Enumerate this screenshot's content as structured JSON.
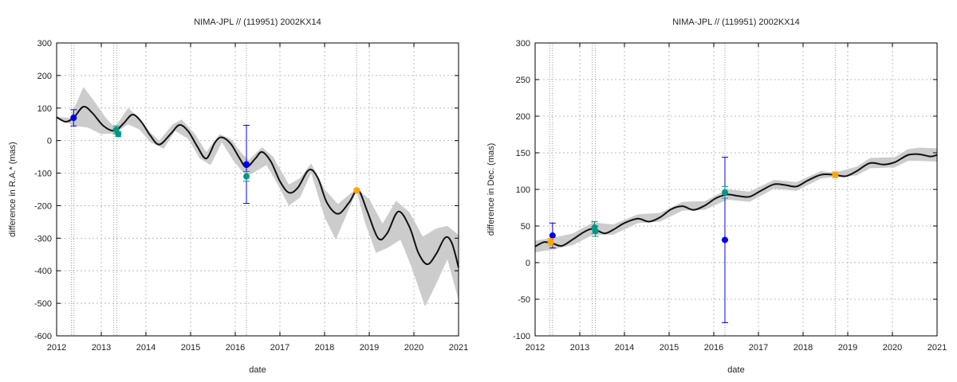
{
  "chart_data": [
    {
      "type": "line",
      "title": "NIMA-JPL // (119951) 2002KX14",
      "xlabel": "date",
      "ylabel": "difference in R.A.* (mas)",
      "xlim": [
        2012,
        2021
      ],
      "ylim": [
        -600,
        300
      ],
      "xticks": [
        2012,
        2013,
        2014,
        2015,
        2016,
        2017,
        2018,
        2019,
        2020,
        2021
      ],
      "yticks": [
        -600,
        -500,
        -400,
        -300,
        -200,
        -100,
        0,
        100,
        200,
        300
      ],
      "grid": true,
      "observation_dates": [
        2012.33,
        2012.39,
        2013.28,
        2013.35,
        2016.25,
        2018.72
      ],
      "curve": [
        [
          2012.0,
          72
        ],
        [
          2012.2,
          58
        ],
        [
          2012.38,
          70
        ],
        [
          2012.6,
          104
        ],
        [
          2012.8,
          85
        ],
        [
          2013.05,
          45
        ],
        [
          2013.3,
          30
        ],
        [
          2013.5,
          53
        ],
        [
          2013.7,
          80
        ],
        [
          2013.9,
          57
        ],
        [
          2014.1,
          15
        ],
        [
          2014.3,
          -12
        ],
        [
          2014.55,
          20
        ],
        [
          2014.75,
          48
        ],
        [
          2014.95,
          28
        ],
        [
          2015.15,
          -18
        ],
        [
          2015.35,
          -55
        ],
        [
          2015.55,
          -5
        ],
        [
          2015.7,
          10
        ],
        [
          2015.9,
          -10
        ],
        [
          2016.1,
          -55
        ],
        [
          2016.25,
          -82
        ],
        [
          2016.45,
          -55
        ],
        [
          2016.6,
          -35
        ],
        [
          2016.8,
          -65
        ],
        [
          2017.0,
          -125
        ],
        [
          2017.2,
          -160
        ],
        [
          2017.4,
          -145
        ],
        [
          2017.65,
          -90
        ],
        [
          2017.85,
          -115
        ],
        [
          2018.05,
          -190
        ],
        [
          2018.3,
          -225
        ],
        [
          2018.55,
          -190
        ],
        [
          2018.75,
          -152
        ],
        [
          2018.95,
          -215
        ],
        [
          2019.2,
          -300
        ],
        [
          2019.4,
          -285
        ],
        [
          2019.65,
          -218
        ],
        [
          2019.9,
          -265
        ],
        [
          2020.1,
          -345
        ],
        [
          2020.3,
          -380
        ],
        [
          2020.5,
          -348
        ],
        [
          2020.7,
          -298
        ],
        [
          2020.85,
          -315
        ],
        [
          2021.0,
          -390
        ]
      ],
      "band_upper": [
        [
          2012.0,
          72
        ],
        [
          2012.3,
          70
        ],
        [
          2012.6,
          165
        ],
        [
          2012.85,
          120
        ],
        [
          2013.1,
          70
        ],
        [
          2013.3,
          40
        ],
        [
          2013.6,
          100
        ],
        [
          2013.85,
          70
        ],
        [
          2014.1,
          25
        ],
        [
          2014.3,
          0
        ],
        [
          2014.6,
          50
        ],
        [
          2014.8,
          65
        ],
        [
          2015.1,
          20
        ],
        [
          2015.35,
          -35
        ],
        [
          2015.65,
          20
        ],
        [
          2015.9,
          5
        ],
        [
          2016.15,
          -40
        ],
        [
          2016.3,
          -60
        ],
        [
          2016.6,
          -20
        ],
        [
          2016.85,
          -50
        ],
        [
          2017.2,
          -135
        ],
        [
          2017.45,
          -115
        ],
        [
          2017.7,
          -70
        ],
        [
          2018.0,
          -150
        ],
        [
          2018.3,
          -195
        ],
        [
          2018.6,
          -160
        ],
        [
          2018.72,
          -148
        ],
        [
          2019.0,
          -180
        ],
        [
          2019.3,
          -255
        ],
        [
          2019.6,
          -185
        ],
        [
          2019.9,
          -220
        ],
        [
          2020.2,
          -295
        ],
        [
          2020.5,
          -270
        ],
        [
          2020.75,
          -262
        ],
        [
          2021.0,
          -290
        ]
      ],
      "band_lower": [
        [
          2021.0,
          -490
        ],
        [
          2020.75,
          -365
        ],
        [
          2020.5,
          -440
        ],
        [
          2020.25,
          -510
        ],
        [
          2019.95,
          -390
        ],
        [
          2019.7,
          -305
        ],
        [
          2019.4,
          -330
        ],
        [
          2019.15,
          -345
        ],
        [
          2018.9,
          -250
        ],
        [
          2018.72,
          -155
        ],
        [
          2018.5,
          -225
        ],
        [
          2018.25,
          -305
        ],
        [
          2018.0,
          -235
        ],
        [
          2017.7,
          -100
        ],
        [
          2017.45,
          -175
        ],
        [
          2017.2,
          -200
        ],
        [
          2016.95,
          -135
        ],
        [
          2016.7,
          -75
        ],
        [
          2016.45,
          -95
        ],
        [
          2016.25,
          -110
        ],
        [
          2015.95,
          -60
        ],
        [
          2015.7,
          -5
        ],
        [
          2015.45,
          -75
        ],
        [
          2015.2,
          -55
        ],
        [
          2014.95,
          5
        ],
        [
          2014.65,
          30
        ],
        [
          2014.4,
          -25
        ],
        [
          2014.1,
          -5
        ],
        [
          2013.85,
          35
        ],
        [
          2013.6,
          50
        ],
        [
          2013.3,
          22
        ],
        [
          2013.0,
          20
        ],
        [
          2012.7,
          40
        ],
        [
          2012.4,
          45
        ],
        [
          2012.0,
          72
        ]
      ],
      "points": [
        {
          "x": 2012.38,
          "y": 70,
          "err": 25,
          "color": "#0000ee"
        },
        {
          "x": 2013.33,
          "y": 33,
          "err": 12,
          "color": "#009688"
        },
        {
          "x": 2013.38,
          "y": 20,
          "err": 8,
          "color": "#009688"
        },
        {
          "x": 2016.25,
          "y": -73,
          "err": 120,
          "color": "#0000ee"
        },
        {
          "x": 2016.25,
          "y": -110,
          "err": 15,
          "color": "#009688"
        },
        {
          "x": 2018.72,
          "y": -153,
          "err": 6,
          "color": "#ffa500"
        }
      ]
    },
    {
      "type": "line",
      "title": "NIMA-JPL // (119951) 2002KX14",
      "xlabel": "date",
      "ylabel": "difference in Dec. (mas)",
      "xlim": [
        2012,
        2021
      ],
      "ylim": [
        -100,
        300
      ],
      "xticks": [
        2012,
        2013,
        2014,
        2015,
        2016,
        2017,
        2018,
        2019,
        2020,
        2021
      ],
      "yticks": [
        -100,
        -50,
        0,
        50,
        100,
        150,
        200,
        250,
        300
      ],
      "grid": true,
      "observation_dates": [
        2012.33,
        2012.39,
        2013.28,
        2013.35,
        2016.25,
        2018.72
      ],
      "curve": [
        [
          2012.0,
          22
        ],
        [
          2012.2,
          28
        ],
        [
          2012.4,
          26
        ],
        [
          2012.6,
          23
        ],
        [
          2012.85,
          32
        ],
        [
          2013.1,
          42
        ],
        [
          2013.3,
          46
        ],
        [
          2013.55,
          40
        ],
        [
          2013.75,
          45
        ],
        [
          2014.0,
          54
        ],
        [
          2014.3,
          60
        ],
        [
          2014.55,
          56
        ],
        [
          2014.8,
          62
        ],
        [
          2015.05,
          73
        ],
        [
          2015.3,
          77
        ],
        [
          2015.55,
          72
        ],
        [
          2015.8,
          78
        ],
        [
          2016.05,
          88
        ],
        [
          2016.3,
          93
        ],
        [
          2016.55,
          91
        ],
        [
          2016.8,
          90
        ],
        [
          2017.05,
          98
        ],
        [
          2017.35,
          107
        ],
        [
          2017.6,
          106
        ],
        [
          2017.85,
          104
        ],
        [
          2018.1,
          112
        ],
        [
          2018.4,
          120
        ],
        [
          2018.7,
          120
        ],
        [
          2018.95,
          118
        ],
        [
          2019.2,
          125
        ],
        [
          2019.5,
          136
        ],
        [
          2019.8,
          134
        ],
        [
          2020.05,
          137
        ],
        [
          2020.35,
          147
        ],
        [
          2020.6,
          148
        ],
        [
          2020.85,
          145
        ],
        [
          2021.0,
          147
        ]
      ],
      "band_upper": [
        [
          2012.0,
          30
        ],
        [
          2012.4,
          34
        ],
        [
          2012.85,
          40
        ],
        [
          2013.3,
          55
        ],
        [
          2013.75,
          52
        ],
        [
          2014.3,
          66
        ],
        [
          2014.8,
          68
        ],
        [
          2015.3,
          83
        ],
        [
          2015.8,
          84
        ],
        [
          2016.3,
          100
        ],
        [
          2016.8,
          97
        ],
        [
          2017.35,
          113
        ],
        [
          2017.85,
          110
        ],
        [
          2018.4,
          125
        ],
        [
          2018.7,
          123
        ],
        [
          2019.2,
          131
        ],
        [
          2019.5,
          143
        ],
        [
          2020.05,
          144
        ],
        [
          2020.35,
          155
        ],
        [
          2020.6,
          157
        ],
        [
          2021.0,
          156
        ]
      ],
      "band_lower": [
        [
          2021.0,
          138
        ],
        [
          2020.6,
          139
        ],
        [
          2020.35,
          139
        ],
        [
          2020.05,
          130
        ],
        [
          2019.5,
          129
        ],
        [
          2019.2,
          119
        ],
        [
          2018.7,
          117
        ],
        [
          2018.4,
          115
        ],
        [
          2017.85,
          98
        ],
        [
          2017.35,
          101
        ],
        [
          2016.8,
          83
        ],
        [
          2016.3,
          86
        ],
        [
          2015.8,
          72
        ],
        [
          2015.3,
          71
        ],
        [
          2014.8,
          56
        ],
        [
          2014.3,
          54
        ],
        [
          2013.75,
          38
        ],
        [
          2013.3,
          38
        ],
        [
          2012.85,
          24
        ],
        [
          2012.4,
          18
        ],
        [
          2012.0,
          14
        ]
      ],
      "points": [
        {
          "x": 2012.39,
          "y": 37,
          "err": 17,
          "color": "#0000ee"
        },
        {
          "x": 2012.35,
          "y": 28,
          "err": 5,
          "color": "#ffa500"
        },
        {
          "x": 2013.33,
          "y": 48,
          "err": 8,
          "color": "#009688"
        },
        {
          "x": 2013.35,
          "y": 43,
          "err": 7,
          "color": "#009688"
        },
        {
          "x": 2016.25,
          "y": 31,
          "err": 113,
          "color": "#0000ee"
        },
        {
          "x": 2016.25,
          "y": 96,
          "err": 8,
          "color": "#009688"
        },
        {
          "x": 2018.72,
          "y": 120,
          "err": 4,
          "color": "#ffa500"
        }
      ]
    }
  ]
}
